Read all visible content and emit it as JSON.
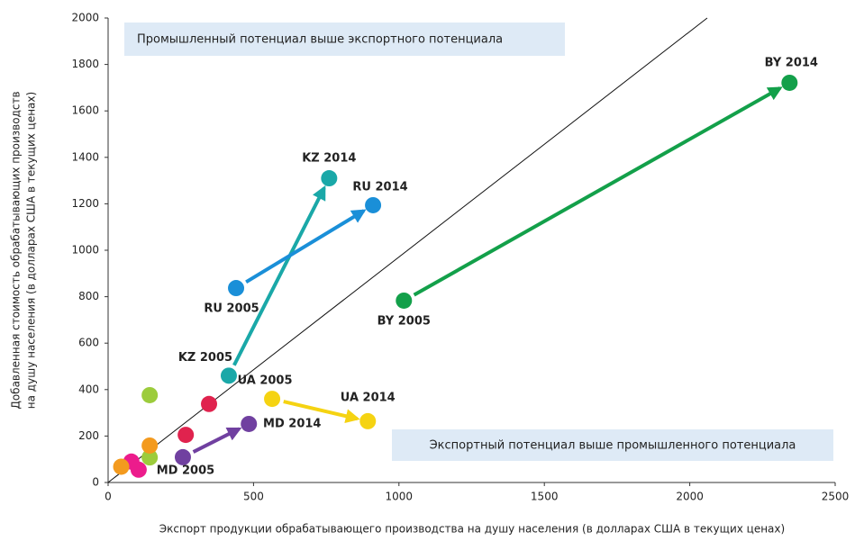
{
  "chart_data": {
    "type": "scatter",
    "x_label": "Экспорт продукции обрабатывающего производства на душу населения (в долларах США в текущих ценах)",
    "y_label": [
      "Добавленная стоимость обрабатывающих производств",
      "на душу населения (в долларах США в текущих ценах)"
    ],
    "annotations": [
      "Промышленный потенциал выше экспортного потенциала",
      "Экспортный потенциал выше промышленного потенциала"
    ],
    "xlim": [
      0,
      2500
    ],
    "xticks": [
      0,
      500,
      1000,
      1500,
      2000,
      2500
    ],
    "ylim": [
      0,
      2000
    ],
    "yticks": [
      0,
      200,
      400,
      600,
      800,
      1000,
      1200,
      1400,
      1600,
      1800,
      2000
    ],
    "diagonal": {
      "x": [
        0,
        2060
      ],
      "y": [
        0,
        2000
      ]
    },
    "series": [
      {
        "labels": [
          "KZ 2005",
          "KZ 2014"
        ],
        "x": [
          415,
          760
        ],
        "values": [
          460,
          1310
        ],
        "color": "#1aa8a8",
        "arrow": true
      },
      {
        "labels": [
          "RU 2005",
          "RU 2014"
        ],
        "x": [
          440,
          911
        ],
        "values": [
          837,
          1194
        ],
        "color": "#1a8fd8",
        "arrow": true
      },
      {
        "labels": [
          "BY 2005",
          "BY 2014"
        ],
        "x": [
          1017,
          2343
        ],
        "values": [
          783,
          1721
        ],
        "color": "#13a04a",
        "arrow": true
      },
      {
        "labels": [
          "UA 2005",
          "UA 2014"
        ],
        "x": [
          564,
          893
        ],
        "values": [
          360,
          264
        ],
        "color": "#f5d312",
        "arrow": true
      },
      {
        "labels": [
          "MD 2005",
          "MD 2014"
        ],
        "x": [
          257,
          484
        ],
        "values": [
          109,
          252
        ],
        "color": "#7040a0",
        "arrow": true
      },
      {
        "x": [
          80,
          105
        ],
        "values": [
          90,
          55
        ],
        "color": "#ec1c8c"
      },
      {
        "x": [
          267,
          347
        ],
        "values": [
          205,
          338
        ],
        "color": "#e0234e"
      },
      {
        "x": [
          143,
          143
        ],
        "values": [
          376,
          108
        ],
        "color": "#9ccc3c"
      },
      {
        "x": [
          45,
          143
        ],
        "values": [
          68,
          159
        ],
        "color": "#f39a1e"
      }
    ]
  }
}
